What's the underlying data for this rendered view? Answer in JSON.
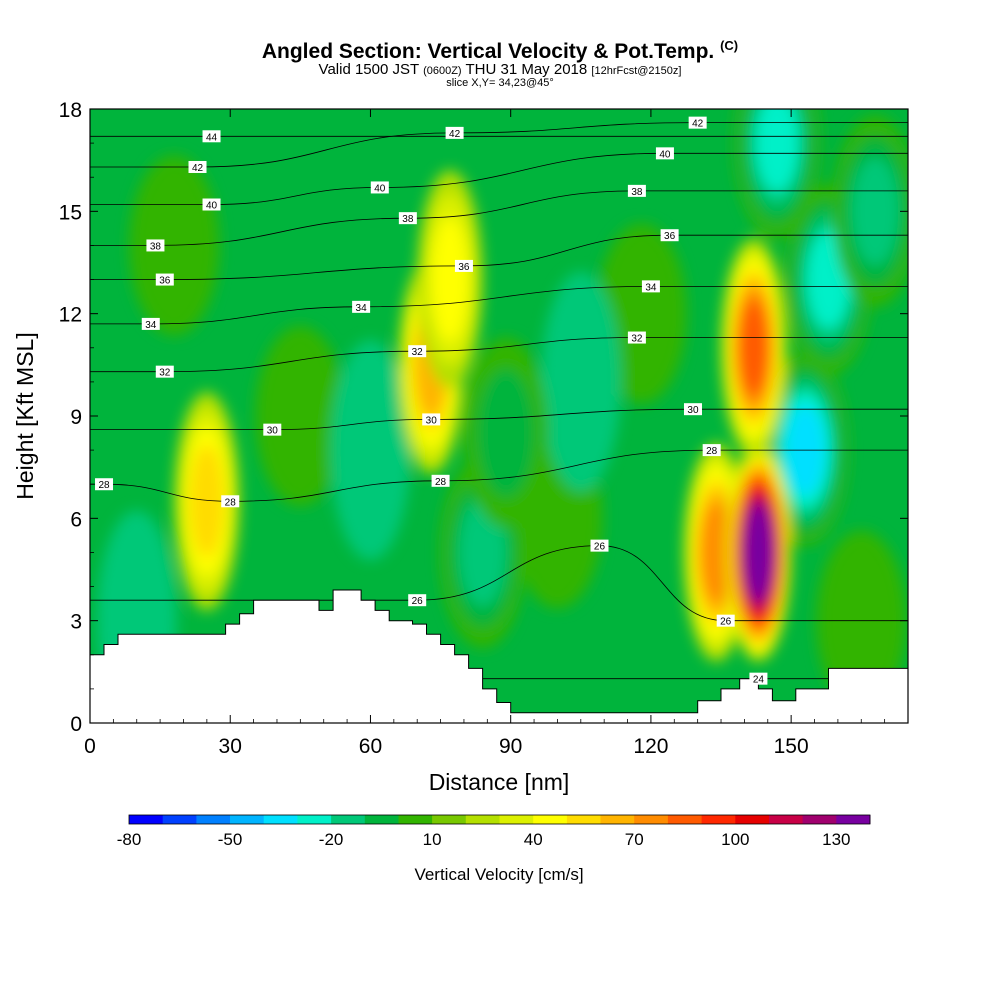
{
  "title": {
    "main": "Angled Section: Vertical Velocity & Pot.Temp.",
    "unit_tag": "(C)",
    "valid_prefix": "Valid 1500 JST",
    "valid_utc": "(0600Z)",
    "valid_date": "THU 31 May 2018",
    "forecast": "[12hrFcst@2150z]",
    "slice": "slice X,Y= 34,23@45°"
  },
  "chart_data": {
    "type": "heatmap",
    "xlabel": "Distance [nm]",
    "ylabel": "Height [Kft MSL]",
    "xlim": [
      0,
      175
    ],
    "ylim": [
      0,
      18
    ],
    "x_ticks": [
      0,
      30,
      60,
      90,
      120,
      150
    ],
    "y_ticks": [
      0,
      3,
      6,
      9,
      12,
      15,
      18
    ],
    "colorbar": {
      "title": "Vertical Velocity [cm/s]",
      "min": -80,
      "max": 140,
      "step": 10,
      "tick_values": [
        -80,
        -50,
        -20,
        10,
        40,
        70,
        100,
        130
      ],
      "colors": [
        "#0000ff",
        "#0040ff",
        "#0080ff",
        "#00b4ff",
        "#00e0ff",
        "#00f0c8",
        "#00c878",
        "#00b43c",
        "#32b400",
        "#78c800",
        "#b4e000",
        "#dcf000",
        "#ffff00",
        "#ffdc00",
        "#ffb400",
        "#ff8c00",
        "#ff5a00",
        "#ff2800",
        "#e60000",
        "#c80046",
        "#a0006e",
        "#7800a0"
      ]
    },
    "updrafts": [
      {
        "x": 25,
        "z": 6.5,
        "peak": 45
      },
      {
        "x": 73,
        "z": 10.5,
        "peak": 60
      },
      {
        "x": 77,
        "z": 13,
        "peak": 40
      },
      {
        "x": 134,
        "z": 5,
        "peak": 65
      },
      {
        "x": 143,
        "z": 5,
        "peak": 140
      },
      {
        "x": 142,
        "z": 11,
        "peak": 75
      }
    ],
    "downdrafts": [
      {
        "x": 84,
        "z": 5,
        "peak": -40
      },
      {
        "x": 89,
        "z": 8.5,
        "peak": -25
      },
      {
        "x": 153,
        "z": 8,
        "peak": -55
      },
      {
        "x": 158,
        "z": 13,
        "peak": -50
      },
      {
        "x": 147,
        "z": 17,
        "peak": -45
      },
      {
        "x": 168,
        "z": 15,
        "peak": -35
      }
    ],
    "theta_contour_labels": [
      {
        "value": "44",
        "x": 26,
        "z": 17.2
      },
      {
        "value": "42",
        "x": 23,
        "z": 16.3
      },
      {
        "value": "40",
        "x": 26,
        "z": 15.2
      },
      {
        "value": "38",
        "x": 14,
        "z": 14
      },
      {
        "value": "36",
        "x": 16,
        "z": 13
      },
      {
        "value": "34",
        "x": 13,
        "z": 11.7
      },
      {
        "value": "32",
        "x": 16,
        "z": 10.3
      },
      {
        "value": "30",
        "x": 39,
        "z": 8.6
      },
      {
        "value": "28",
        "x": 3,
        "z": 7
      },
      {
        "value": "28",
        "x": 30,
        "z": 6.5
      },
      {
        "value": "42",
        "x": 78,
        "z": 17.3
      },
      {
        "value": "40",
        "x": 62,
        "z": 15.7
      },
      {
        "value": "38",
        "x": 68,
        "z": 14.8
      },
      {
        "value": "36",
        "x": 80,
        "z": 13.4
      },
      {
        "value": "34",
        "x": 58,
        "z": 12.2
      },
      {
        "value": "32",
        "x": 70,
        "z": 10.9
      },
      {
        "value": "30",
        "x": 73,
        "z": 8.9
      },
      {
        "value": "28",
        "x": 75,
        "z": 7.1
      },
      {
        "value": "26",
        "x": 70,
        "z": 3.6
      },
      {
        "value": "26",
        "x": 109,
        "z": 5.2
      },
      {
        "value": "42",
        "x": 130,
        "z": 17.6
      },
      {
        "value": "40",
        "x": 123,
        "z": 16.7
      },
      {
        "value": "38",
        "x": 117,
        "z": 15.6
      },
      {
        "value": "36",
        "x": 124,
        "z": 14.3
      },
      {
        "value": "34",
        "x": 120,
        "z": 12.8
      },
      {
        "value": "32",
        "x": 117,
        "z": 11.3
      },
      {
        "value": "30",
        "x": 129,
        "z": 9.2
      },
      {
        "value": "28",
        "x": 133,
        "z": 8
      },
      {
        "value": "26",
        "x": 136,
        "z": 3
      },
      {
        "value": "24",
        "x": 143,
        "z": 1.3
      }
    ],
    "terrain": [
      [
        0,
        2
      ],
      [
        3,
        2
      ],
      [
        3,
        2.3
      ],
      [
        6,
        2.3
      ],
      [
        6,
        2.6
      ],
      [
        29,
        2.6
      ],
      [
        29,
        2.9
      ],
      [
        32,
        2.9
      ],
      [
        32,
        3.2
      ],
      [
        35,
        3.2
      ],
      [
        35,
        3.6
      ],
      [
        49,
        3.6
      ],
      [
        49,
        3.3
      ],
      [
        52,
        3.3
      ],
      [
        52,
        3.9
      ],
      [
        58,
        3.9
      ],
      [
        58,
        3.6
      ],
      [
        61,
        3.6
      ],
      [
        61,
        3.3
      ],
      [
        64,
        3.3
      ],
      [
        64,
        3.0
      ],
      [
        69,
        3.0
      ],
      [
        69,
        2.9
      ],
      [
        72,
        2.9
      ],
      [
        72,
        2.6
      ],
      [
        75,
        2.6
      ],
      [
        75,
        2.3
      ],
      [
        78,
        2.3
      ],
      [
        78,
        2.0
      ],
      [
        81,
        2.0
      ],
      [
        81,
        1.6
      ],
      [
        84,
        1.6
      ],
      [
        84,
        1.0
      ],
      [
        87,
        1.0
      ],
      [
        87,
        0.6
      ],
      [
        90,
        0.6
      ],
      [
        90,
        0.3
      ],
      [
        130,
        0.3
      ],
      [
        130,
        0.65
      ],
      [
        135,
        0.65
      ],
      [
        135,
        1.0
      ],
      [
        139,
        1.0
      ],
      [
        139,
        1.3
      ],
      [
        143,
        1.3
      ],
      [
        143,
        1.0
      ],
      [
        146,
        1.0
      ],
      [
        146,
        0.65
      ],
      [
        151,
        0.65
      ],
      [
        151,
        1.0
      ],
      [
        158,
        1.0
      ],
      [
        158,
        1.6
      ],
      [
        175,
        1.6
      ]
    ]
  }
}
